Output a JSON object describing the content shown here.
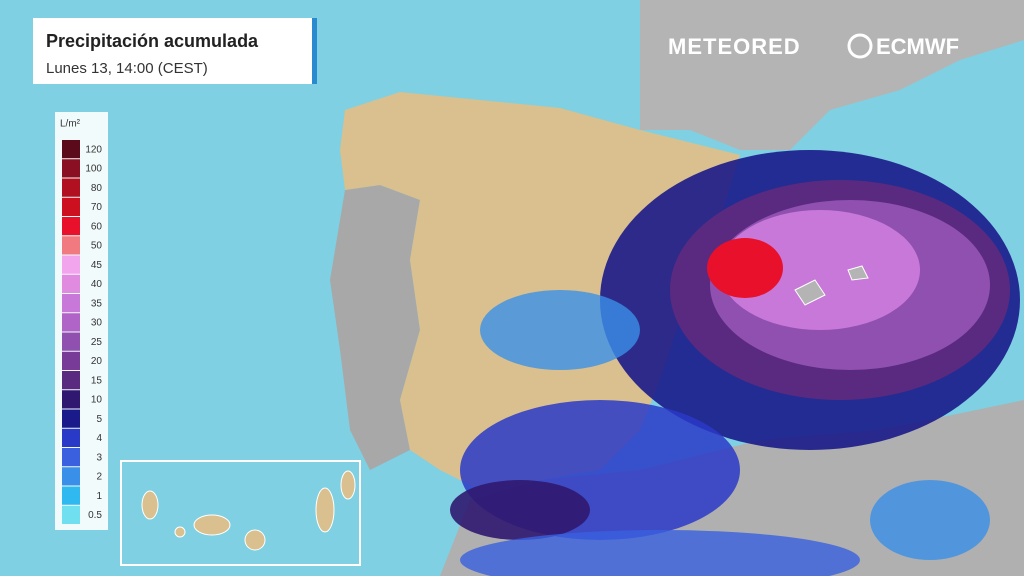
{
  "header": {
    "title": "Precipitación acumulada",
    "subtitle": "Lunes 13, 14:00 (CEST)"
  },
  "logos": [
    "METEORED",
    "ECMWF"
  ],
  "legend": {
    "unit": "L/m²",
    "items": [
      {
        "label": "120",
        "color": "#5a0a1a"
      },
      {
        "label": "100",
        "color": "#8b0f22"
      },
      {
        "label": "80",
        "color": "#b01020"
      },
      {
        "label": "70",
        "color": "#cc1020"
      },
      {
        "label": "60",
        "color": "#e8102a"
      },
      {
        "label": "50",
        "color": "#f07a80"
      },
      {
        "label": "45",
        "color": "#f2a4ec"
      },
      {
        "label": "40",
        "color": "#e08ae0"
      },
      {
        "label": "35",
        "color": "#c878d8"
      },
      {
        "label": "30",
        "color": "#b064c8"
      },
      {
        "label": "25",
        "color": "#9050b0"
      },
      {
        "label": "20",
        "color": "#783c98"
      },
      {
        "label": "15",
        "color": "#5a2a80"
      },
      {
        "label": "10",
        "color": "#301870"
      },
      {
        "label": "5",
        "color": "#1a1a8a"
      },
      {
        "label": "4",
        "color": "#2a3ac8"
      },
      {
        "label": "3",
        "color": "#3a60e0"
      },
      {
        "label": "2",
        "color": "#3a90e8"
      },
      {
        "label": "1",
        "color": "#30b8f0"
      },
      {
        "label": "0.5",
        "color": "#70e0f0"
      }
    ]
  }
}
